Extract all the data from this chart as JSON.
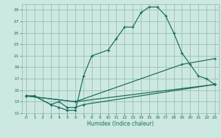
{
  "title": "",
  "xlabel": "Humidex (Indice chaleur)",
  "bg_color": "#cce8e0",
  "grid_color": "#99bbbb",
  "line_color": "#1a6b5a",
  "xlim": [
    -0.5,
    23.5
  ],
  "ylim": [
    11,
    30
  ],
  "xticks": [
    0,
    1,
    2,
    3,
    4,
    5,
    6,
    7,
    8,
    9,
    10,
    11,
    12,
    13,
    14,
    15,
    16,
    17,
    18,
    19,
    20,
    21,
    22,
    23
  ],
  "yticks": [
    11,
    13,
    15,
    17,
    19,
    21,
    23,
    25,
    27,
    29
  ],
  "curve1_x": [
    0,
    1,
    3,
    4,
    5,
    6,
    7,
    8,
    10,
    11,
    12,
    13,
    14,
    15,
    16,
    17,
    18,
    19,
    20,
    21,
    22,
    23
  ],
  "curve1_y": [
    14,
    14,
    12.5,
    12,
    11.5,
    11.5,
    17.5,
    21,
    22,
    24,
    26,
    26,
    28.5,
    29.5,
    29.5,
    28,
    25,
    21.5,
    19.5,
    17.5,
    17,
    16
  ],
  "curve2_x": [
    0,
    1,
    3,
    4,
    5,
    6,
    7,
    23
  ],
  "curve2_y": [
    14,
    14,
    12.5,
    13,
    12,
    12,
    12.5,
    16
  ],
  "curve3_x": [
    0,
    6,
    19,
    23
  ],
  "curve3_y": [
    14,
    13,
    19.5,
    20.5
  ],
  "curve4_x": [
    0,
    6,
    23
  ],
  "curve4_y": [
    14,
    13,
    16
  ],
  "lw": 0.9,
  "ms": 2.5
}
